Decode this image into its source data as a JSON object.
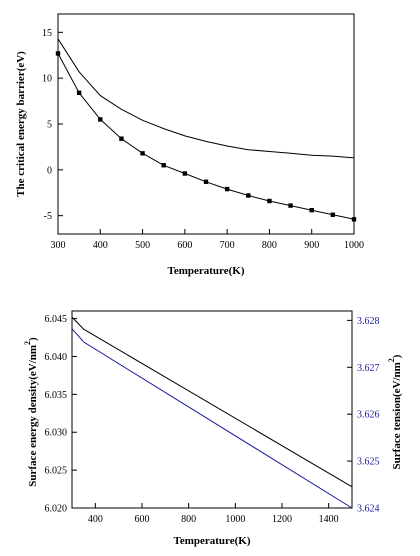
{
  "chart_data": [
    {
      "type": "line",
      "title": "",
      "xlabel": "Temperature(K)",
      "ylabel": "The critical energy barrier(eV)",
      "xlim": [
        300,
        1000
      ],
      "ylim": [
        -7,
        17
      ],
      "x_ticks": [
        300,
        400,
        500,
        600,
        700,
        800,
        900,
        1000
      ],
      "y_ticks": [
        -5,
        0,
        5,
        10,
        15
      ],
      "grid": false,
      "legend": "none",
      "series": [
        {
          "style": "solid-line",
          "color": "#000000",
          "x": [
            300,
            350,
            400,
            450,
            500,
            550,
            600,
            650,
            700,
            750,
            800,
            850,
            900,
            950,
            1000
          ],
          "y": [
            14.3,
            10.7,
            8.1,
            6.6,
            5.4,
            4.5,
            3.7,
            3.1,
            2.6,
            2.2,
            2.0,
            1.8,
            1.6,
            1.5,
            1.3
          ]
        },
        {
          "style": "line-square-markers",
          "color": "#000000",
          "x": [
            300,
            350,
            400,
            450,
            500,
            550,
            600,
            650,
            700,
            750,
            800,
            850,
            900,
            950,
            1000
          ],
          "y": [
            12.7,
            8.4,
            5.5,
            3.4,
            1.8,
            0.5,
            -0.4,
            -1.3,
            -2.1,
            -2.8,
            -3.4,
            -3.9,
            -4.4,
            -4.9,
            -5.4
          ]
        }
      ]
    },
    {
      "type": "line",
      "title": "",
      "xlabel": "Temperature(K)",
      "ylabel_left": "Surface energy density(eV/nm",
      "ylabel_left_sup": "2",
      "ylabel_left_tail": ")",
      "ylabel_right": "Surface tension(eV/nm",
      "ylabel_right_sup": "2",
      "ylabel_right_tail": ")",
      "xlim": [
        300,
        1500
      ],
      "ylim_left": [
        6.02,
        6.046
      ],
      "ylim_right": [
        3.624,
        3.6282
      ],
      "x_ticks": [
        400,
        600,
        800,
        1000,
        1200,
        1400
      ],
      "y_ticks_left": [
        "6.020",
        "6.025",
        "6.030",
        "6.035",
        "6.040",
        "6.045"
      ],
      "y_ticks_right": [
        "3.624",
        "3.625",
        "3.626",
        "3.627",
        "3.628"
      ],
      "right_axis_color": "#1a1aa0",
      "grid": false,
      "legend": "none",
      "series": [
        {
          "axis": "left",
          "color": "#000000",
          "x": [
            300,
            350,
            1500
          ],
          "y": [
            6.0452,
            6.0436,
            6.0228
          ]
        },
        {
          "axis": "right",
          "color": "#1a1aa0",
          "x": [
            300,
            350,
            1500
          ],
          "y": [
            3.62782,
            3.62754,
            3.624
          ]
        }
      ]
    }
  ]
}
